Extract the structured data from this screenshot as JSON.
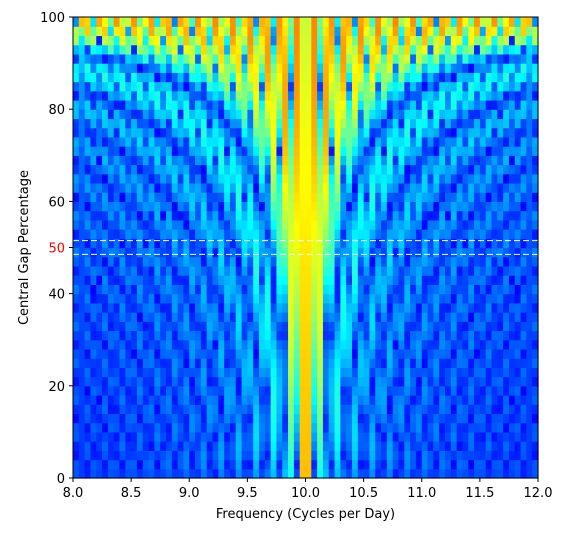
{
  "chart_data": {
    "type": "heatmap",
    "title": "",
    "xlabel": "Frequency (Cycles per Day)",
    "ylabel": "Central Gap Percentage",
    "xlim": [
      8.0,
      12.0
    ],
    "ylim": [
      0,
      100
    ],
    "x_ticks": [
      "8.0",
      "8.5",
      "9.0",
      "9.5",
      "10.0",
      "10.5",
      "11.0",
      "11.5",
      "12.0"
    ],
    "y_ticks": [
      "0",
      "20",
      "40",
      "60",
      "80",
      "100"
    ],
    "highlight_tick": {
      "value": 50,
      "label": "50",
      "color": "#ff0000"
    },
    "dashed_lines": [
      {
        "y": 51.5,
        "color": "#ffffff"
      },
      {
        "y": 48.5,
        "color": "#ffffff"
      }
    ],
    "colormap": "jet",
    "peak_frequency": 10.0,
    "grid": {
      "x_bins": 80,
      "y_bins": 50
    },
    "grid_visible": false,
    "legend": "none"
  }
}
